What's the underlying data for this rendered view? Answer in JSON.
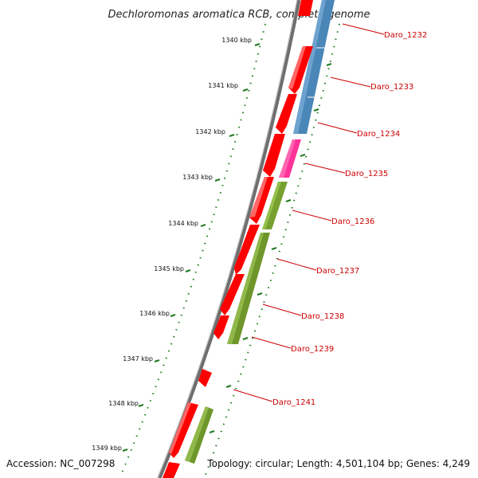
{
  "title": "Dechloromonas aromatica RCB, complete genome",
  "footer": {
    "accession": "Accession: NC_007298",
    "topology": "Topology: circular; Length: 4,501,104 bp; Genes: 4,249"
  },
  "colors": {
    "backbone": "#8a8a8a",
    "tick": "#1f7a1f",
    "label": "#cc0000",
    "forward_gene": "#ff0000",
    "blue_feature": "#4a86b8",
    "pink_feature": "#ff3399",
    "olive_feature": "#77a030"
  },
  "ticks": [
    "1340 kbp",
    "1341 kbp",
    "1342 kbp",
    "1343 kbp",
    "1344 kbp",
    "1345 kbp",
    "1346 kbp",
    "1347 kbp",
    "1348 kbp",
    "1349 kbp"
  ],
  "gene_labels": [
    "Daro_1232",
    "Daro_1233",
    "Daro_1234",
    "Daro_1235",
    "Daro_1236",
    "Daro_1237",
    "Daro_1238",
    "Daro_1239",
    "Daro_1241"
  ]
}
